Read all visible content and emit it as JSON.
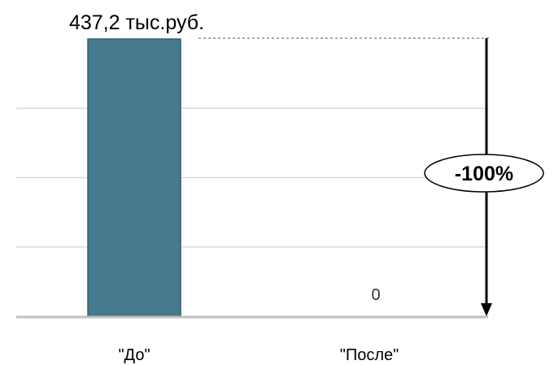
{
  "chart_data": {
    "type": "bar",
    "categories": [
      "\"До\"",
      "\"После\""
    ],
    "values": [
      437.2,
      0
    ],
    "data_labels": [
      "437,2 тыс.руб.",
      "0"
    ],
    "change_label": "-100%",
    "ylim": [
      0,
      437.2
    ],
    "grid": true,
    "colors": {
      "bar": "#457a8e",
      "bar_border": "#2e5e72",
      "grid": "#d9d9d9",
      "axis": "#bfbfbf",
      "arrow": "#000000"
    }
  }
}
